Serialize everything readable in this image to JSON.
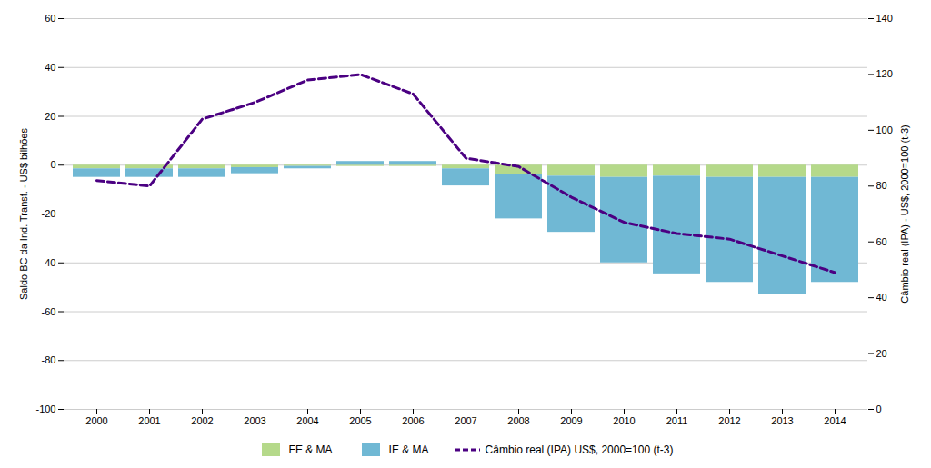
{
  "chart_data": {
    "type": "bar",
    "stacked": true,
    "categories": [
      "2000",
      "2001",
      "2002",
      "2003",
      "2004",
      "2005",
      "2006",
      "2007",
      "2008",
      "2009",
      "2010",
      "2011",
      "2012",
      "2013",
      "2014"
    ],
    "series": [
      {
        "name": "FE & MA",
        "type": "bar",
        "color": "#b5d98a",
        "values": [
          -1.5,
          -1.5,
          -1.5,
          -1.0,
          -0.5,
          -0.5,
          -0.5,
          -1.5,
          -4.0,
          -4.5,
          -5.0,
          -4.5,
          -5.0,
          -5.0,
          -5.0
        ]
      },
      {
        "name": "IE & MA",
        "type": "bar",
        "color": "#70b8d4",
        "values": [
          -3.5,
          -3.5,
          -3.5,
          -2.5,
          -1.0,
          1.5,
          1.5,
          -7.0,
          -18.0,
          -23.0,
          -35.0,
          -40.0,
          -43.0,
          -48.0,
          -43.0
        ]
      },
      {
        "name": "Câmbio real (IPA) US$, 2000=100 (t-3)",
        "type": "line",
        "axis": "y2",
        "color": "#4B0082",
        "line_style": "dashed",
        "values": [
          82,
          80,
          104,
          110,
          118,
          120,
          113,
          90,
          87,
          76,
          67,
          63,
          61,
          55,
          49
        ]
      }
    ],
    "ylabel": "Saldo BC da Ind. Transf. - US$ bilhões",
    "y2label": "Câmbio real (IPA) - US$, 2000=100 (t-3)",
    "ylim": [
      -100,
      60
    ],
    "yticks": [
      -100,
      -80,
      -60,
      -40,
      -20,
      0,
      20,
      40,
      60
    ],
    "y2lim": [
      0,
      140
    ],
    "y2ticks": [
      0,
      20,
      40,
      60,
      80,
      100,
      120,
      140
    ],
    "grid": true
  }
}
